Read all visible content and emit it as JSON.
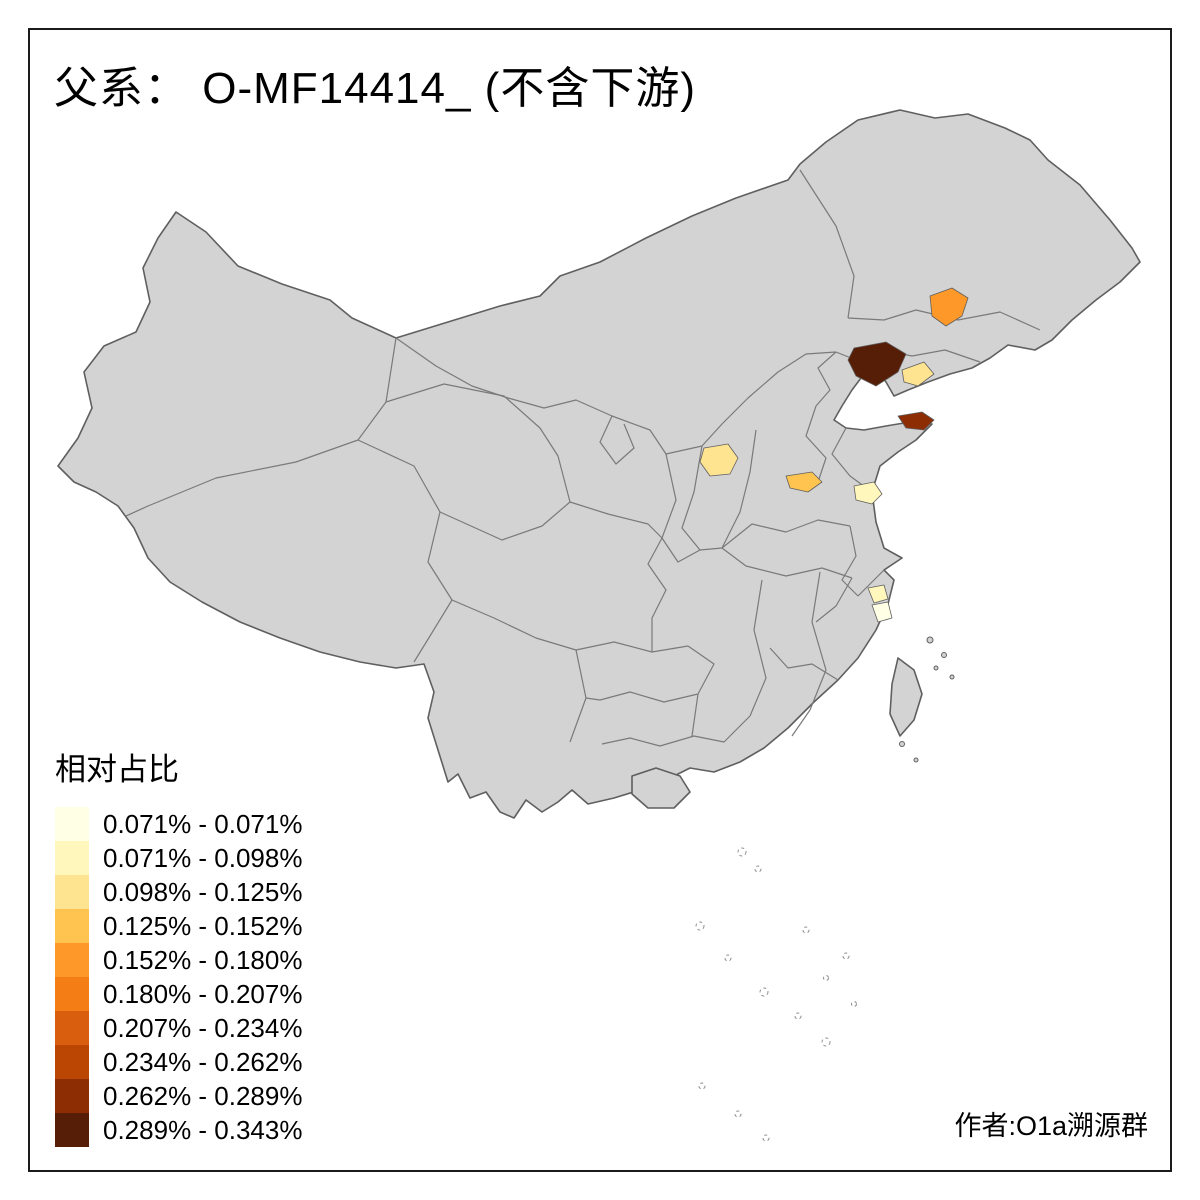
{
  "title": "父系： O-MF14414_ (不含下游)",
  "credit": "作者:O1a溯源群",
  "legend": {
    "title": "相对占比",
    "items": [
      {
        "label": "0.071% - 0.071%",
        "color": "#FFFFE5"
      },
      {
        "label": "0.071% - 0.098%",
        "color": "#FFF7BC"
      },
      {
        "label": "0.098% - 0.125%",
        "color": "#FEE391"
      },
      {
        "label": "0.125% - 0.152%",
        "color": "#FEC44F"
      },
      {
        "label": "0.152% - 0.180%",
        "color": "#FE9929"
      },
      {
        "label": "0.180% - 0.207%",
        "color": "#F57D15"
      },
      {
        "label": "0.207% - 0.234%",
        "color": "#D95F0E"
      },
      {
        "label": "0.234% - 0.262%",
        "color": "#BB4503"
      },
      {
        "label": "0.262% - 0.289%",
        "color": "#8C2D04"
      },
      {
        "label": "0.289% - 0.343%",
        "color": "#571E07"
      }
    ]
  },
  "map": {
    "land_fill": "#D3D3D3",
    "outline_color": "#5F5F5F",
    "province_border_color": "#7A7A7A",
    "highlighted_regions": [
      {
        "name": "jilin-area",
        "color": "#FE9929"
      },
      {
        "name": "liaodong-dalian-area",
        "color": "#571E07"
      },
      {
        "name": "liaoning-coast-area",
        "color": "#FEE391"
      },
      {
        "name": "shandong-weihai-area",
        "color": "#8C2D04"
      },
      {
        "name": "shanxi-area",
        "color": "#FEE391"
      },
      {
        "name": "henan-area",
        "color": "#FEC44F"
      },
      {
        "name": "jiangsu-area",
        "color": "#FFF7BC"
      },
      {
        "name": "zhejiang-north-area",
        "color": "#FFF7BC"
      },
      {
        "name": "zhejiang-south-area",
        "color": "#FFFFE5"
      }
    ]
  }
}
